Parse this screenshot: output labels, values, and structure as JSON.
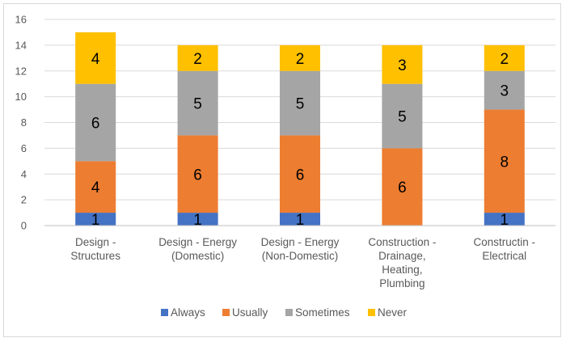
{
  "chart_data": {
    "type": "bar",
    "stacked": true,
    "title": "",
    "xlabel": "",
    "ylabel": "",
    "ylim": [
      0,
      16
    ],
    "ytick_step": 2,
    "grid": true,
    "legend_position": "bottom",
    "categories": [
      [
        "Design -",
        "Structures"
      ],
      [
        "Design - Energy",
        "(Domestic)"
      ],
      [
        "Design - Energy",
        "(Non-Domestic)"
      ],
      [
        "Construction -",
        "Drainage,",
        "Heating,",
        "Plumbing"
      ],
      [
        "Constructin -",
        "Electrical"
      ]
    ],
    "series": [
      {
        "name": "Always",
        "color": "#4472C4",
        "values": [
          1,
          1,
          1,
          0,
          1
        ]
      },
      {
        "name": "Usually",
        "color": "#ED7D31",
        "values": [
          4,
          6,
          6,
          6,
          8
        ]
      },
      {
        "name": "Sometimes",
        "color": "#A5A5A5",
        "values": [
          6,
          5,
          5,
          5,
          3
        ]
      },
      {
        "name": "Never",
        "color": "#FFC000",
        "values": [
          4,
          2,
          2,
          3,
          2
        ]
      }
    ]
  }
}
